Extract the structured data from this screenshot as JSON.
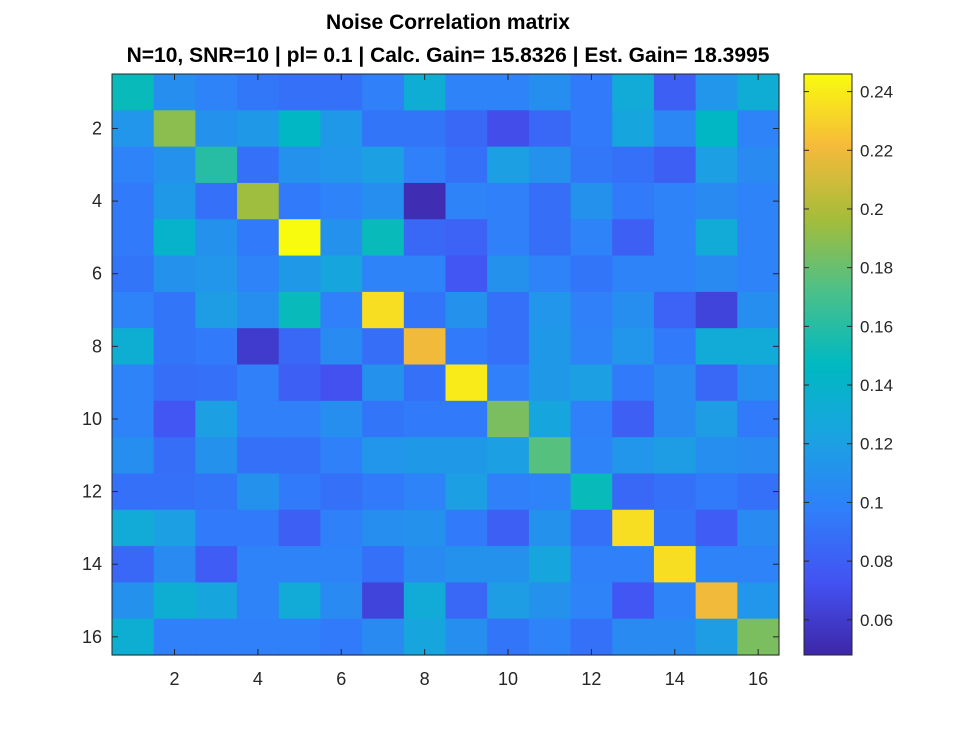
{
  "chart_data": {
    "type": "heatmap",
    "title": "Noise Correlation matrix",
    "subtitle": "N=10, SNR=10 | pl= 0.1 | Calc. Gain= 15.8326 | Est. Gain= 18.3995",
    "xlabel": "",
    "ylabel": "",
    "rows": 16,
    "cols": 16,
    "x_ticks": [
      2,
      4,
      6,
      8,
      10,
      12,
      14,
      16
    ],
    "y_ticks": [
      2,
      4,
      6,
      8,
      10,
      12,
      14,
      16
    ],
    "colormap": "parula",
    "clim": [
      0.048,
      0.246
    ],
    "colorbar_ticks": [
      0.06,
      0.08,
      0.1,
      0.12,
      0.14,
      0.16,
      0.18,
      0.2,
      0.22,
      0.24
    ],
    "colorbar_tick_labels": [
      "0.06",
      "0.08",
      "0.1",
      "0.12",
      "0.14",
      "0.16",
      "0.18",
      "0.2",
      "0.22",
      "0.24"
    ],
    "values": [
      [
        0.15,
        0.108,
        0.1,
        0.093,
        0.09,
        0.09,
        0.098,
        0.133,
        0.1,
        0.1,
        0.108,
        0.095,
        0.13,
        0.08,
        0.113,
        0.133
      ],
      [
        0.113,
        0.19,
        0.11,
        0.115,
        0.145,
        0.115,
        0.092,
        0.092,
        0.085,
        0.07,
        0.085,
        0.095,
        0.125,
        0.103,
        0.145,
        0.1
      ],
      [
        0.1,
        0.11,
        0.16,
        0.09,
        0.11,
        0.113,
        0.12,
        0.098,
        0.09,
        0.12,
        0.11,
        0.093,
        0.09,
        0.08,
        0.12,
        0.105
      ],
      [
        0.095,
        0.115,
        0.09,
        0.195,
        0.095,
        0.1,
        0.108,
        0.052,
        0.1,
        0.098,
        0.088,
        0.11,
        0.095,
        0.1,
        0.105,
        0.1
      ],
      [
        0.095,
        0.14,
        0.11,
        0.095,
        0.246,
        0.11,
        0.15,
        0.085,
        0.082,
        0.098,
        0.088,
        0.1,
        0.08,
        0.1,
        0.13,
        0.1
      ],
      [
        0.092,
        0.11,
        0.113,
        0.1,
        0.115,
        0.125,
        0.1,
        0.1,
        0.075,
        0.11,
        0.1,
        0.092,
        0.1,
        0.1,
        0.105,
        0.1
      ],
      [
        0.1,
        0.092,
        0.118,
        0.108,
        0.15,
        0.098,
        0.235,
        0.092,
        0.11,
        0.09,
        0.113,
        0.098,
        0.108,
        0.082,
        0.065,
        0.108
      ],
      [
        0.135,
        0.092,
        0.095,
        0.06,
        0.085,
        0.105,
        0.088,
        0.22,
        0.095,
        0.09,
        0.115,
        0.1,
        0.113,
        0.095,
        0.13,
        0.13
      ],
      [
        0.1,
        0.088,
        0.09,
        0.098,
        0.08,
        0.072,
        0.11,
        0.09,
        0.24,
        0.098,
        0.115,
        0.12,
        0.095,
        0.105,
        0.085,
        0.108
      ],
      [
        0.1,
        0.075,
        0.12,
        0.098,
        0.098,
        0.108,
        0.092,
        0.095,
        0.095,
        0.185,
        0.125,
        0.098,
        0.08,
        0.105,
        0.118,
        0.095
      ],
      [
        0.108,
        0.088,
        0.11,
        0.09,
        0.09,
        0.098,
        0.113,
        0.115,
        0.115,
        0.12,
        0.175,
        0.1,
        0.113,
        0.118,
        0.108,
        0.105
      ],
      [
        0.09,
        0.09,
        0.092,
        0.11,
        0.095,
        0.09,
        0.095,
        0.1,
        0.12,
        0.098,
        0.1,
        0.15,
        0.085,
        0.09,
        0.095,
        0.09
      ],
      [
        0.13,
        0.12,
        0.095,
        0.095,
        0.08,
        0.098,
        0.108,
        0.11,
        0.095,
        0.08,
        0.11,
        0.09,
        0.235,
        0.092,
        0.078,
        0.105
      ],
      [
        0.085,
        0.105,
        0.078,
        0.1,
        0.1,
        0.1,
        0.09,
        0.105,
        0.11,
        0.11,
        0.125,
        0.098,
        0.098,
        0.235,
        0.1,
        0.1
      ],
      [
        0.11,
        0.135,
        0.125,
        0.1,
        0.13,
        0.105,
        0.065,
        0.13,
        0.085,
        0.118,
        0.11,
        0.1,
        0.075,
        0.1,
        0.22,
        0.113
      ],
      [
        0.135,
        0.098,
        0.098,
        0.098,
        0.098,
        0.095,
        0.105,
        0.125,
        0.108,
        0.092,
        0.1,
        0.09,
        0.105,
        0.105,
        0.118,
        0.185
      ]
    ]
  }
}
